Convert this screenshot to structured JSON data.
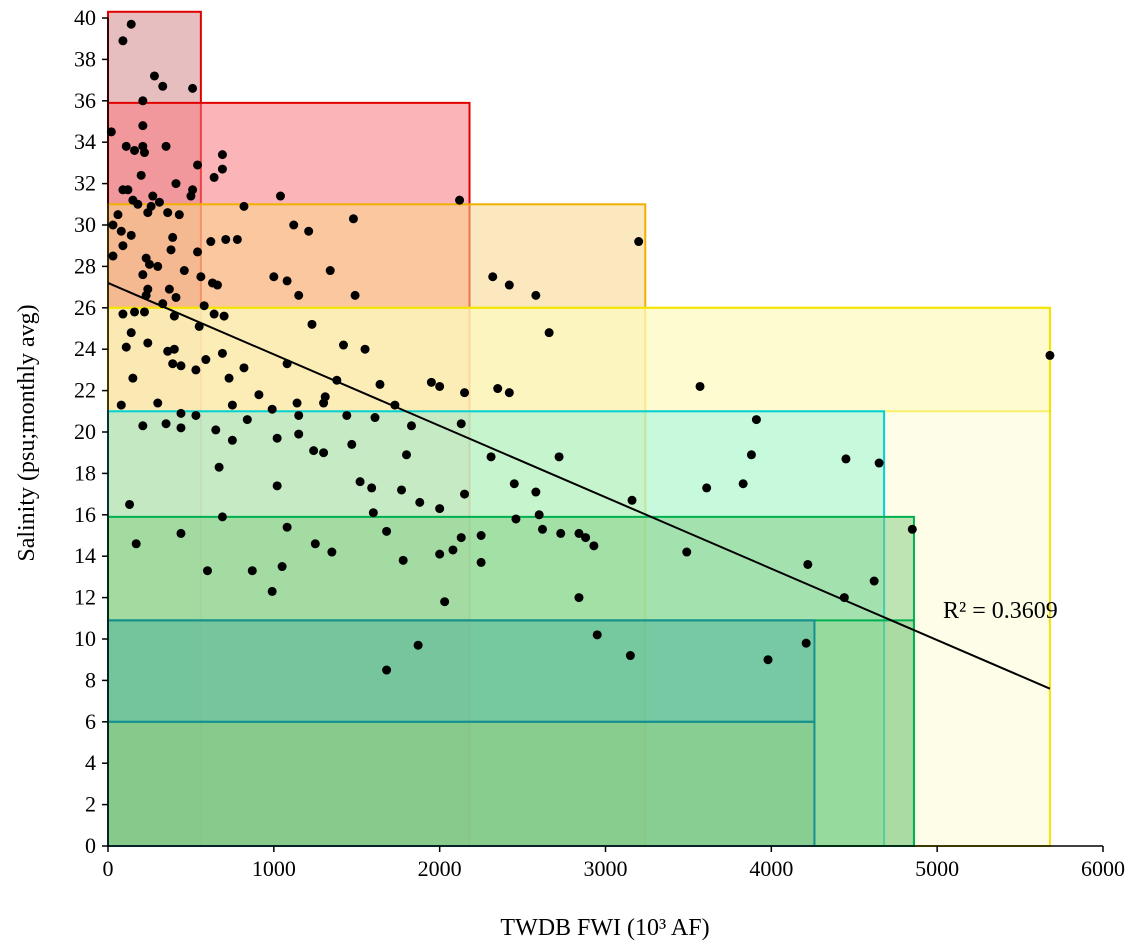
{
  "chart_data": {
    "type": "scatter",
    "xlabel": "TWDB FWI (10³ AF)",
    "ylabel": "Salinity (psu;monthly avg)",
    "xlim": [
      0,
      6000
    ],
    "ylim": [
      0,
      40
    ],
    "x_ticks": [
      0,
      1000,
      2000,
      3000,
      4000,
      5000,
      6000
    ],
    "y_ticks": [
      0,
      2,
      4,
      6,
      8,
      10,
      12,
      14,
      16,
      18,
      20,
      22,
      24,
      26,
      28,
      30,
      32,
      34,
      36,
      38,
      40
    ],
    "grid": false,
    "annotation": "R² = 0.3609",
    "trendline": {
      "x": [
        0,
        5680
      ],
      "y": [
        27.2,
        7.6
      ],
      "color": "#000000"
    },
    "rectangles": [
      {
        "x": [
          0,
          560
        ],
        "y": [
          0,
          40.3
        ],
        "fill": "#d4898a",
        "fill_opacity": 0.55,
        "stroke": "#e00000"
      },
      {
        "x": [
          0,
          2180
        ],
        "y": [
          0,
          35.9
        ],
        "fill": "#f7797d",
        "fill_opacity": 0.55,
        "stroke": "#e00000"
      },
      {
        "x": [
          0,
          3240
        ],
        "y": [
          0,
          31.0
        ],
        "fill": "#f9d68a",
        "fill_opacity": 0.55,
        "stroke": "#f0b000"
      },
      {
        "x": [
          0,
          5680
        ],
        "y": [
          21.0,
          26.0
        ],
        "fill": "#fbf59a",
        "fill_opacity": 0.5,
        "stroke": "#f5e400"
      },
      {
        "x": [
          0,
          5680
        ],
        "y": [
          0,
          26.0
        ],
        "fill": "#fdfbd2",
        "fill_opacity": 0.5,
        "stroke": "#f5e400"
      },
      {
        "x": [
          0,
          4680
        ],
        "y": [
          0,
          21.0
        ],
        "fill": "#90f5d0",
        "fill_opacity": 0.5,
        "stroke": "#00d0d8"
      },
      {
        "x": [
          0,
          4860
        ],
        "y": [
          0,
          15.9
        ],
        "fill": "#80cc80",
        "fill_opacity": 0.5,
        "stroke": "#00b050"
      },
      {
        "x": [
          0,
          4860
        ],
        "y": [
          0,
          10.9
        ],
        "fill": "#80cc80",
        "fill_opacity": 0.35,
        "stroke": "#00b050"
      },
      {
        "x": [
          0,
          4260
        ],
        "y": [
          6.0,
          10.9
        ],
        "fill": "#3aa8a8",
        "fill_opacity": 0.35,
        "stroke": "#168f8f"
      },
      {
        "x": [
          0,
          4260
        ],
        "y": [
          0,
          6.0
        ],
        "fill": "#5aa870",
        "fill_opacity": 0.25,
        "stroke": "#168f8f"
      }
    ],
    "points": [
      [
        140,
        39.7
      ],
      [
        90,
        38.9
      ],
      [
        280,
        37.2
      ],
      [
        330,
        36.7
      ],
      [
        510,
        36.6
      ],
      [
        210,
        36.0
      ],
      [
        20,
        34.5
      ],
      [
        210,
        34.8
      ],
      [
        350,
        33.8
      ],
      [
        110,
        33.8
      ],
      [
        210,
        33.8
      ],
      [
        160,
        33.6
      ],
      [
        220,
        33.5
      ],
      [
        690,
        33.4
      ],
      [
        540,
        32.9
      ],
      [
        690,
        32.7
      ],
      [
        640,
        32.3
      ],
      [
        200,
        32.4
      ],
      [
        410,
        32.0
      ],
      [
        120,
        31.7
      ],
      [
        90,
        31.7
      ],
      [
        510,
        31.7
      ],
      [
        500,
        31.4
      ],
      [
        270,
        31.4
      ],
      [
        1040,
        31.4
      ],
      [
        310,
        31.1
      ],
      [
        2120,
        31.2
      ],
      [
        150,
        31.2
      ],
      [
        820,
        30.9
      ],
      [
        180,
        31.0
      ],
      [
        260,
        30.9
      ],
      [
        60,
        30.5
      ],
      [
        430,
        30.5
      ],
      [
        240,
        30.6
      ],
      [
        360,
        30.6
      ],
      [
        1480,
        30.3
      ],
      [
        30,
        30.0
      ],
      [
        80,
        29.7
      ],
      [
        140,
        29.5
      ],
      [
        390,
        29.4
      ],
      [
        1120,
        30.0
      ],
      [
        1210,
        29.7
      ],
      [
        710,
        29.3
      ],
      [
        620,
        29.2
      ],
      [
        780,
        29.3
      ],
      [
        3200,
        29.2
      ],
      [
        90,
        29.0
      ],
      [
        380,
        28.8
      ],
      [
        540,
        28.7
      ],
      [
        30,
        28.5
      ],
      [
        230,
        28.4
      ],
      [
        250,
        28.1
      ],
      [
        300,
        28.0
      ],
      [
        460,
        27.8
      ],
      [
        1340,
        27.8
      ],
      [
        2320,
        27.5
      ],
      [
        210,
        27.6
      ],
      [
        560,
        27.5
      ],
      [
        1000,
        27.5
      ],
      [
        630,
        27.2
      ],
      [
        1080,
        27.3
      ],
      [
        2420,
        27.1
      ],
      [
        660,
        27.1
      ],
      [
        240,
        26.9
      ],
      [
        370,
        26.9
      ],
      [
        410,
        26.5
      ],
      [
        1150,
        26.6
      ],
      [
        1490,
        26.6
      ],
      [
        2580,
        26.6
      ],
      [
        230,
        26.6
      ],
      [
        330,
        26.2
      ],
      [
        580,
        26.1
      ],
      [
        220,
        25.8
      ],
      [
        90,
        25.7
      ],
      [
        160,
        25.8
      ],
      [
        400,
        25.6
      ],
      [
        640,
        25.7
      ],
      [
        700,
        25.6
      ],
      [
        1230,
        25.2
      ],
      [
        550,
        25.1
      ],
      [
        2660,
        24.8
      ],
      [
        140,
        24.8
      ],
      [
        110,
        24.1
      ],
      [
        240,
        24.3
      ],
      [
        1420,
        24.2
      ],
      [
        1550,
        24.0
      ],
      [
        400,
        24.0
      ],
      [
        360,
        23.9
      ],
      [
        690,
        23.8
      ],
      [
        590,
        23.5
      ],
      [
        390,
        23.3
      ],
      [
        440,
        23.2
      ],
      [
        530,
        23.0
      ],
      [
        820,
        23.1
      ],
      [
        1080,
        23.3
      ],
      [
        5680,
        23.7
      ],
      [
        150,
        22.6
      ],
      [
        730,
        22.6
      ],
      [
        1380,
        22.5
      ],
      [
        1950,
        22.4
      ],
      [
        2000,
        22.2
      ],
      [
        2350,
        22.1
      ],
      [
        3570,
        22.2
      ],
      [
        1640,
        22.3
      ],
      [
        910,
        21.8
      ],
      [
        1140,
        21.4
      ],
      [
        2420,
        21.9
      ],
      [
        2150,
        21.9
      ],
      [
        1310,
        21.7
      ],
      [
        1300,
        21.4
      ],
      [
        1730,
        21.3
      ],
      [
        750,
        21.3
      ],
      [
        80,
        21.3
      ],
      [
        300,
        21.4
      ],
      [
        990,
        21.1
      ],
      [
        440,
        20.9
      ],
      [
        530,
        20.8
      ],
      [
        1150,
        20.8
      ],
      [
        1440,
        20.8
      ],
      [
        1610,
        20.7
      ],
      [
        3910,
        20.6
      ],
      [
        2130,
        20.4
      ],
      [
        1830,
        20.3
      ],
      [
        840,
        20.6
      ],
      [
        440,
        20.2
      ],
      [
        210,
        20.3
      ],
      [
        350,
        20.4
      ],
      [
        650,
        20.1
      ],
      [
        1150,
        19.9
      ],
      [
        750,
        19.6
      ],
      [
        1020,
        19.7
      ],
      [
        1470,
        19.4
      ],
      [
        1240,
        19.1
      ],
      [
        1300,
        19.0
      ],
      [
        3880,
        18.9
      ],
      [
        2720,
        18.8
      ],
      [
        2310,
        18.8
      ],
      [
        1800,
        18.9
      ],
      [
        670,
        18.3
      ],
      [
        4450,
        18.7
      ],
      [
        4650,
        18.5
      ],
      [
        1520,
        17.6
      ],
      [
        2450,
        17.5
      ],
      [
        3830,
        17.5
      ],
      [
        3610,
        17.3
      ],
      [
        1020,
        17.4
      ],
      [
        1590,
        17.3
      ],
      [
        1770,
        17.2
      ],
      [
        2580,
        17.1
      ],
      [
        2150,
        17.0
      ],
      [
        2000,
        16.3
      ],
      [
        1880,
        16.6
      ],
      [
        3160,
        16.7
      ],
      [
        130,
        16.5
      ],
      [
        1600,
        16.1
      ],
      [
        690,
        15.9
      ],
      [
        2460,
        15.8
      ],
      [
        2600,
        16.0
      ],
      [
        4850,
        15.3
      ],
      [
        1080,
        15.4
      ],
      [
        2620,
        15.3
      ],
      [
        2840,
        15.1
      ],
      [
        2880,
        14.9
      ],
      [
        2730,
        15.1
      ],
      [
        2250,
        15.0
      ],
      [
        2130,
        14.9
      ],
      [
        440,
        15.1
      ],
      [
        1680,
        15.2
      ],
      [
        1250,
        14.6
      ],
      [
        2930,
        14.5
      ],
      [
        3490,
        14.2
      ],
      [
        170,
        14.6
      ],
      [
        1350,
        14.2
      ],
      [
        2000,
        14.1
      ],
      [
        2080,
        14.3
      ],
      [
        1780,
        13.8
      ],
      [
        2250,
        13.7
      ],
      [
        4220,
        13.6
      ],
      [
        600,
        13.3
      ],
      [
        870,
        13.3
      ],
      [
        1050,
        13.5
      ],
      [
        4620,
        12.8
      ],
      [
        990,
        12.3
      ],
      [
        2840,
        12.0
      ],
      [
        4440,
        12.0
      ],
      [
        2030,
        11.8
      ],
      [
        2950,
        10.2
      ],
      [
        1870,
        9.7
      ],
      [
        4210,
        9.8
      ],
      [
        3150,
        9.2
      ],
      [
        3980,
        9.0
      ],
      [
        1680,
        8.5
      ]
    ]
  }
}
